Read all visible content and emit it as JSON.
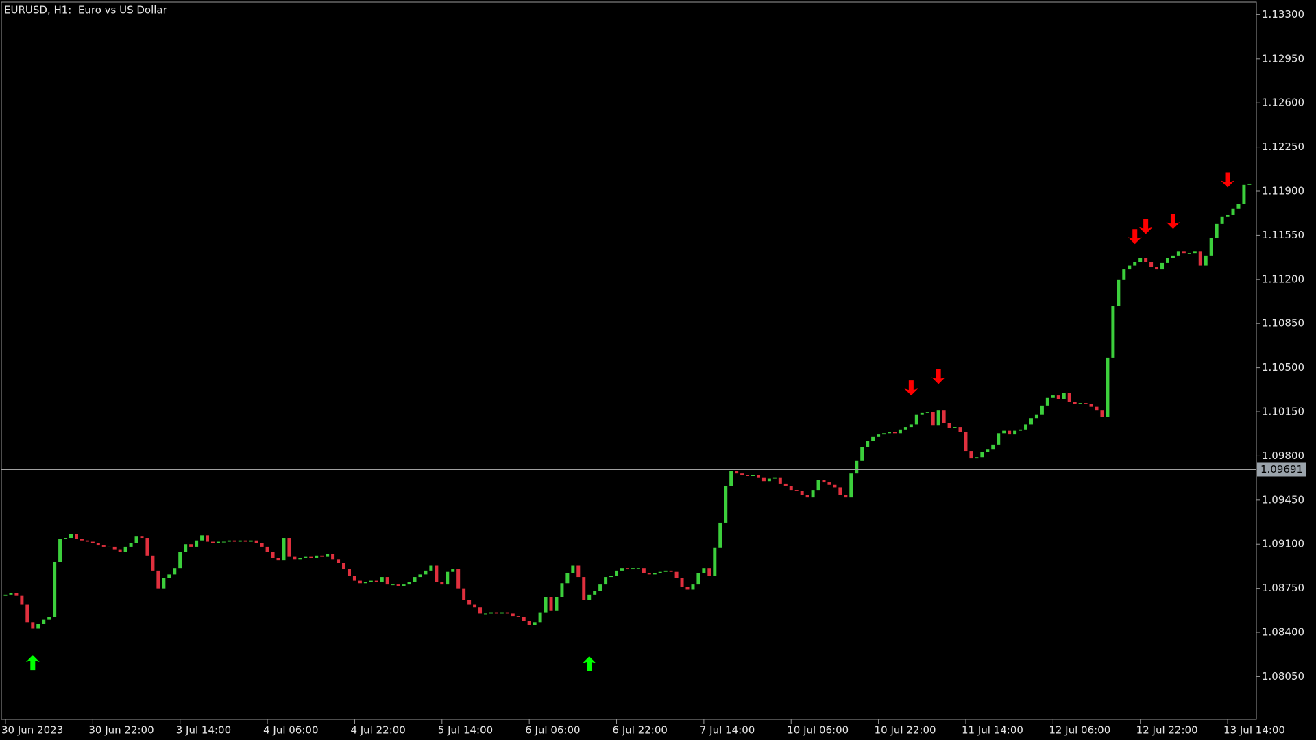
{
  "chart_data": {
    "type": "candlestick",
    "title": "EURUSD, H1:  Euro vs US Dollar",
    "up_color": "#3ccf3c",
    "down_color": "#e0303e",
    "background": "#000000",
    "categories": [
      "30 Jun 2023",
      null,
      null,
      null,
      null,
      null,
      null,
      null,
      null,
      null,
      null,
      null,
      null,
      null,
      null,
      null,
      "30 Jun 22:00",
      null,
      null,
      null,
      null,
      null,
      null,
      null,
      null,
      null,
      null,
      null,
      null,
      null,
      null,
      null,
      "3 Jul 14:00",
      null,
      null,
      null,
      null,
      null,
      null,
      null,
      null,
      null,
      null,
      null,
      null,
      null,
      null,
      null,
      "4 Jul 06:00",
      null,
      null,
      null,
      null,
      null,
      null,
      null,
      null,
      null,
      null,
      null,
      null,
      null,
      null,
      null,
      "4 Jul 22:00",
      null,
      null,
      null,
      null,
      null,
      null,
      null,
      null,
      null,
      null,
      null,
      null,
      null,
      null,
      null,
      "5 Jul 14:00",
      null,
      null,
      null,
      null,
      null,
      null,
      null,
      null,
      null,
      null,
      null,
      null,
      null,
      null,
      null,
      "6 Jul 06:00",
      null,
      null,
      null,
      null,
      null,
      null,
      null,
      null,
      null,
      null,
      null,
      null,
      null,
      null,
      null,
      "6 Jul 22:00",
      null,
      null,
      null,
      null,
      null,
      null,
      null,
      null,
      null,
      null,
      null,
      null,
      null,
      null,
      null,
      "7 Jul 14:00",
      null,
      null,
      null,
      null,
      null,
      null,
      null,
      null,
      null,
      null,
      null,
      null,
      null,
      null,
      null,
      "10 Jul 06:00",
      null,
      null,
      null,
      null,
      null,
      null,
      null,
      null,
      null,
      null,
      null,
      null,
      null,
      null,
      null,
      "10 Jul 22:00",
      null,
      null,
      null,
      null,
      null,
      null,
      null,
      null,
      null,
      null,
      null,
      null,
      null,
      null,
      null,
      "11 Jul 14:00",
      null,
      null,
      null,
      null,
      null,
      null,
      null,
      null,
      null,
      null,
      null,
      null,
      null,
      null,
      null,
      "12 Jul 06:00",
      null,
      null,
      null,
      null,
      null,
      null,
      null,
      null,
      null,
      null,
      null,
      null,
      null,
      null,
      null,
      "12 Jul 22:00",
      null,
      null,
      null,
      null,
      null,
      null,
      null,
      null,
      null,
      null,
      null,
      null,
      null,
      null,
      null,
      "13 Jul 14:00",
      null,
      null,
      null,
      null
    ],
    "close": [
      1.087,
      1.0871,
      1.0869,
      1.0862,
      1.0848,
      1.0843,
      1.0847,
      1.085,
      1.0852,
      1.0896,
      1.0914,
      1.0915,
      1.0918,
      1.0914,
      1.0913,
      1.0912,
      1.0911,
      1.0909,
      1.0908,
      1.0908,
      1.0906,
      1.0904,
      1.0908,
      1.0911,
      1.0916,
      1.0915,
      1.0901,
      1.0889,
      1.0875,
      1.0883,
      1.0886,
      1.0891,
      1.0904,
      1.091,
      1.0908,
      1.0913,
      1.0917,
      1.0912,
      1.0911,
      1.0912,
      1.0912,
      1.0913,
      1.0912,
      1.0913,
      1.0912,
      1.0913,
      1.0911,
      1.0908,
      1.0904,
      1.0899,
      1.0897,
      1.0915,
      1.09,
      1.0898,
      1.0899,
      1.09,
      1.0899,
      1.0901,
      1.09,
      1.0902,
      1.0898,
      1.0895,
      1.089,
      1.0885,
      1.0881,
      1.0879,
      1.088,
      1.0881,
      1.088,
      1.0884,
      1.0878,
      1.0878,
      1.0877,
      1.0878,
      1.088,
      1.0884,
      1.0886,
      1.0889,
      1.0893,
      1.088,
      1.0878,
      1.0888,
      1.089,
      1.0875,
      1.0866,
      1.0862,
      1.086,
      1.0855,
      1.0855,
      1.0856,
      1.0855,
      1.0856,
      1.0855,
      1.0853,
      1.0852,
      1.0849,
      1.0846,
      1.0848,
      1.0856,
      1.0868,
      1.0857,
      1.0868,
      1.0879,
      1.0887,
      1.0893,
      1.0884,
      1.0866,
      1.087,
      1.0873,
      1.0878,
      1.0884,
      1.0885,
      1.0889,
      1.0891,
      1.089,
      1.0891,
      1.0891,
      1.0887,
      1.0886,
      1.0887,
      1.0888,
      1.0889,
      1.0888,
      1.0883,
      1.0876,
      1.0874,
      1.0878,
      1.0887,
      1.0891,
      1.0885,
      1.0907,
      1.0927,
      1.0956,
      1.0968,
      1.0966,
      1.0965,
      1.0964,
      1.0965,
      1.0963,
      1.096,
      1.0962,
      1.0963,
      1.0958,
      1.0956,
      1.0953,
      1.0952,
      1.0949,
      1.0947,
      1.0953,
      1.0961,
      1.0959,
      1.0957,
      1.0955,
      1.0949,
      1.0947,
      1.0966,
      1.0976,
      1.0987,
      1.0992,
      1.0995,
      1.0997,
      1.0998,
      1.0999,
      1.0998,
      1.1001,
      1.1003,
      1.1005,
      1.1013,
      1.1014,
      1.1015,
      1.1004,
      1.1016,
      1.1006,
      1.1002,
      1.1003,
      1.0999,
      1.0984,
      1.0978,
      1.0979,
      1.0983,
      1.0985,
      1.0989,
      1.0998,
      1.1,
      1.0997,
      1.1,
      1.1001,
      1.1005,
      1.101,
      1.1013,
      1.102,
      1.1026,
      1.1028,
      1.1025,
      1.103,
      1.1023,
      1.1021,
      1.1022,
      1.1021,
      1.1019,
      1.1016,
      1.1011,
      1.1058,
      1.1099,
      1.112,
      1.1128,
      1.1131,
      1.1134,
      1.1137,
      1.1134,
      1.113,
      1.1128,
      1.1133,
      1.1137,
      1.1139,
      1.1142,
      1.1141,
      1.1141,
      1.1142,
      1.1131,
      1.1139,
      1.1153,
      1.1164,
      1.117,
      1.1171,
      1.1176,
      1.118,
      1.1195,
      1.1196
    ],
    "open": [
      1.0869,
      1.087,
      1.0871,
      1.0869,
      1.0862,
      1.0848,
      1.0843,
      1.0847,
      1.085,
      1.0852,
      1.0896,
      1.0914,
      1.0915,
      1.0918,
      1.0914,
      1.0913,
      1.0912,
      1.0911,
      1.0909,
      1.0908,
      1.0908,
      1.0906,
      1.0904,
      1.0908,
      1.0911,
      1.0916,
      1.0915,
      1.0901,
      1.0889,
      1.0875,
      1.0883,
      1.0886,
      1.0891,
      1.0904,
      1.091,
      1.0908,
      1.0913,
      1.0917,
      1.0912,
      1.0911,
      1.0912,
      1.0912,
      1.0913,
      1.0912,
      1.0913,
      1.0912,
      1.0913,
      1.0911,
      1.0908,
      1.0904,
      1.0899,
      1.0897,
      1.0915,
      1.09,
      1.0898,
      1.0899,
      1.09,
      1.0899,
      1.0901,
      1.09,
      1.0902,
      1.0898,
      1.0895,
      1.089,
      1.0885,
      1.0881,
      1.0879,
      1.088,
      1.0881,
      1.088,
      1.0884,
      1.0878,
      1.0878,
      1.0877,
      1.0878,
      1.088,
      1.0884,
      1.0886,
      1.0889,
      1.0893,
      1.088,
      1.0878,
      1.0888,
      1.089,
      1.0875,
      1.0866,
      1.0862,
      1.086,
      1.0855,
      1.0855,
      1.0856,
      1.0855,
      1.0856,
      1.0855,
      1.0853,
      1.0852,
      1.0849,
      1.0846,
      1.0848,
      1.0856,
      1.0868,
      1.0857,
      1.0868,
      1.0879,
      1.0887,
      1.0893,
      1.0884,
      1.0866,
      1.087,
      1.0873,
      1.0878,
      1.0884,
      1.0885,
      1.0889,
      1.0891,
      1.089,
      1.0891,
      1.0891,
      1.0887,
      1.0886,
      1.0887,
      1.0888,
      1.0889,
      1.0888,
      1.0883,
      1.0876,
      1.0874,
      1.0878,
      1.0887,
      1.0891,
      1.0885,
      1.0907,
      1.0927,
      1.0956,
      1.0968,
      1.0966,
      1.0965,
      1.0964,
      1.0965,
      1.0963,
      1.096,
      1.0962,
      1.0963,
      1.0958,
      1.0956,
      1.0953,
      1.0952,
      1.0949,
      1.0947,
      1.0953,
      1.0961,
      1.0959,
      1.0957,
      1.0955,
      1.0949,
      1.0947,
      1.0966,
      1.0976,
      1.0987,
      1.0992,
      1.0995,
      1.0997,
      1.0998,
      1.0999,
      1.0998,
      1.1001,
      1.1003,
      1.1005,
      1.1013,
      1.1014,
      1.1015,
      1.1004,
      1.1016,
      1.1006,
      1.1002,
      1.1003,
      1.0999,
      1.0984,
      1.0978,
      1.0979,
      1.0983,
      1.0985,
      1.0989,
      1.0998,
      1.1,
      1.0997,
      1.1,
      1.1001,
      1.1005,
      1.101,
      1.1013,
      1.102,
      1.1026,
      1.1028,
      1.1025,
      1.103,
      1.1023,
      1.1021,
      1.1022,
      1.1021,
      1.1019,
      1.1016,
      1.1011,
      1.1058,
      1.1099,
      1.112,
      1.1128,
      1.1131,
      1.1134,
      1.1137,
      1.1134,
      1.113,
      1.1128,
      1.1133,
      1.1137,
      1.1139,
      1.1142,
      1.1141,
      1.1141,
      1.1142,
      1.1131,
      1.1139,
      1.1153,
      1.1164,
      1.117,
      1.1171,
      1.1176,
      1.118,
      1.1195
    ],
    "buy_arrows": {
      "color": "#00ff00",
      "bars": [
        5,
        107
      ],
      "prices": [
        1.0822,
        1.0821
      ]
    },
    "sell_arrows": {
      "color": "#ff0000",
      "bars": [
        166,
        171,
        207,
        209,
        214,
        224
      ],
      "prices": [
        1.1028,
        1.1037,
        1.1148,
        1.1156,
        1.116,
        1.1193
      ]
    },
    "last_price": 1.09691,
    "ylim": [
      1.0771,
      1.134
    ],
    "yticks": [
      {
        "value": 1.133,
        "label": "1.13300"
      },
      {
        "value": 1.1295,
        "label": "1.12950"
      },
      {
        "value": 1.126,
        "label": "1.12600"
      },
      {
        "value": 1.1225,
        "label": "1.12250"
      },
      {
        "value": 1.119,
        "label": "1.11900"
      },
      {
        "value": 1.1155,
        "label": "1.11550"
      },
      {
        "value": 1.112,
        "label": "1.11200"
      },
      {
        "value": 1.1085,
        "label": "1.10850"
      },
      {
        "value": 1.105,
        "label": "1.10500"
      },
      {
        "value": 1.1015,
        "label": "1.10150"
      },
      {
        "value": 1.098,
        "label": "1.09800"
      },
      {
        "value": 1.0945,
        "label": "1.09450"
      },
      {
        "value": 1.091,
        "label": "1.09100"
      },
      {
        "value": 1.0875,
        "label": "1.08750"
      },
      {
        "value": 1.084,
        "label": "1.08400"
      },
      {
        "value": 1.0805,
        "label": "1.08050"
      }
    ]
  }
}
